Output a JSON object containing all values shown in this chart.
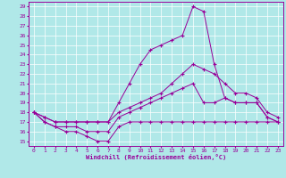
{
  "xlabel": "Windchill (Refroidissement éolien,°C)",
  "background_color": "#b0e8e8",
  "grid_color": "#ffffff",
  "line_color": "#990099",
  "xlim": [
    -0.5,
    23.5
  ],
  "ylim": [
    14.5,
    29.5
  ],
  "x_ticks": [
    0,
    1,
    2,
    3,
    4,
    5,
    6,
    7,
    8,
    9,
    10,
    11,
    12,
    13,
    14,
    15,
    16,
    17,
    18,
    19,
    20,
    21,
    22,
    23
  ],
  "y_ticks": [
    15,
    16,
    17,
    18,
    19,
    20,
    21,
    22,
    23,
    24,
    25,
    26,
    27,
    28,
    29
  ],
  "curve1_x": [
    0,
    1,
    2,
    3,
    4,
    5,
    6,
    7,
    8,
    9,
    10,
    11,
    12,
    13,
    14,
    15,
    16,
    17,
    18,
    19,
    20,
    21,
    22,
    23
  ],
  "curve1_y": [
    18,
    17,
    16.5,
    16,
    16,
    15.5,
    15,
    15,
    16.5,
    17,
    17,
    17,
    17,
    17,
    17,
    17,
    17,
    17,
    17,
    17,
    17,
    17,
    17,
    17
  ],
  "curve2_x": [
    0,
    1,
    2,
    3,
    4,
    5,
    6,
    7,
    8,
    9,
    10,
    11,
    12,
    13,
    14,
    15,
    16,
    17,
    18,
    19,
    20,
    21,
    22,
    23
  ],
  "curve2_y": [
    18,
    17,
    16.5,
    16.5,
    16.5,
    16,
    16,
    16,
    17.5,
    18,
    18.5,
    19,
    19.5,
    20,
    20.5,
    21,
    19,
    19,
    19.5,
    19,
    19,
    19,
    17.5,
    17
  ],
  "curve3_x": [
    0,
    1,
    2,
    3,
    4,
    5,
    6,
    7,
    8,
    9,
    10,
    11,
    12,
    13,
    14,
    15,
    16,
    17,
    18,
    19,
    20,
    21,
    22,
    23
  ],
  "curve3_y": [
    18,
    17.5,
    17,
    17,
    17,
    17,
    17,
    17,
    18,
    18.5,
    19,
    19.5,
    20,
    21,
    22,
    23,
    22.5,
    22,
    21,
    20,
    20,
    19.5,
    18,
    17.5
  ],
  "curve4_x": [
    0,
    1,
    2,
    3,
    4,
    5,
    6,
    7,
    8,
    9,
    10,
    11,
    12,
    13,
    14,
    15,
    16,
    17,
    18,
    19,
    20,
    21,
    22,
    23
  ],
  "curve4_y": [
    18,
    17.5,
    17,
    17,
    17,
    17,
    17,
    17,
    19,
    21,
    23,
    24.5,
    25,
    25.5,
    26,
    29,
    28.5,
    23,
    19.5,
    19,
    19,
    19,
    17.5,
    17
  ]
}
